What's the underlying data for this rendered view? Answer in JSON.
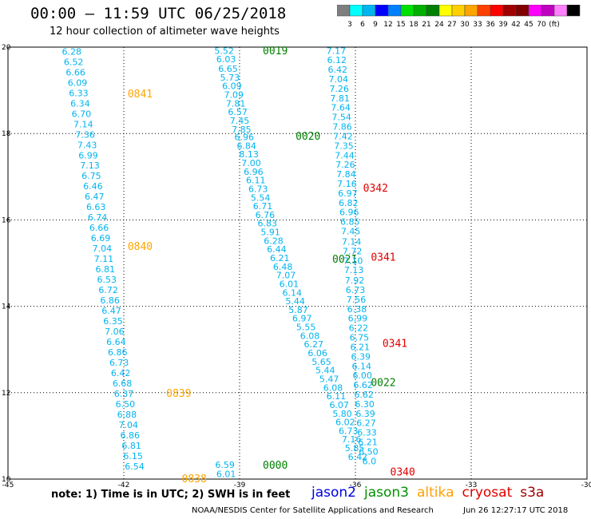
{
  "header": {
    "title": "00:00 – 11:59 UTC 06/25/2018",
    "subtitle": "12 hour collection of altimeter wave heights"
  },
  "colorbar": {
    "colors": [
      "#7f7f7f",
      "#00ffff",
      "#00b4f0",
      "#0000ff",
      "#0080ff",
      "#00e000",
      "#00b000",
      "#008000",
      "#ffff00",
      "#ffd000",
      "#ffa500",
      "#ff4000",
      "#ff0000",
      "#a00000",
      "#800000",
      "#ff00ff",
      "#c000c0",
      "#ff80ff",
      "#000000"
    ],
    "labels": [
      "3",
      "6",
      "9",
      "12",
      "15",
      "18",
      "21",
      "24",
      "27",
      "30",
      "33",
      "36",
      "39",
      "42",
      "45",
      "70",
      "(ft)"
    ]
  },
  "footer": {
    "note": "note: 1) Time is in UTC; 2) SWH is in feet",
    "legend": [
      {
        "name": "jason2",
        "color": "#0000e0"
      },
      {
        "name": "jason3",
        "color": "#009000"
      },
      {
        "name": "altika",
        "color": "#ffa000"
      },
      {
        "name": "cryosat",
        "color": "#e00000"
      },
      {
        "name": "s3a",
        "color": "#a00000"
      }
    ],
    "credit": "NOAA/NESDIS Center for Satellite Applications and Research",
    "timestamp": "Jun 26 12:27:17 UTC 2018"
  },
  "chart_data": {
    "type": "scatter",
    "xlim": [
      -45,
      -30
    ],
    "ylim": [
      10,
      20
    ],
    "x_ticks": [
      "-45",
      "-42",
      "-39",
      "-36",
      "-33",
      "-30"
    ],
    "y_ticks": [
      "10",
      "12",
      "14",
      "16",
      "18",
      "20"
    ],
    "grid": true,
    "tracks": [
      {
        "satellite": "altika",
        "value_color": "#00b4f0",
        "label_color": "#ffa500",
        "time_labels": [
          {
            "text": "0841",
            "x": -41.9,
            "y": 18.93
          },
          {
            "text": "0840",
            "x": -41.9,
            "y": 15.4
          },
          {
            "text": "0839",
            "x": -40.9,
            "y": 12.0
          },
          {
            "text": "0838",
            "x": -40.5,
            "y": 10.02
          }
        ],
        "points": [
          {
            "x": -43.35,
            "y": 19.9,
            "v": "6.28"
          },
          {
            "x": -43.3,
            "y": 19.66,
            "v": "6.52"
          },
          {
            "x": -43.25,
            "y": 19.42,
            "v": "6.66"
          },
          {
            "x": -43.2,
            "y": 19.18,
            "v": "6.09"
          },
          {
            "x": -43.17,
            "y": 18.94,
            "v": "6.33"
          },
          {
            "x": -43.13,
            "y": 18.7,
            "v": "6.34"
          },
          {
            "x": -43.1,
            "y": 18.46,
            "v": "6.70"
          },
          {
            "x": -43.05,
            "y": 18.22,
            "v": "7.14"
          },
          {
            "x": -43.0,
            "y": 17.98,
            "v": "7.36"
          },
          {
            "x": -42.95,
            "y": 17.74,
            "v": "7.43"
          },
          {
            "x": -42.92,
            "y": 17.5,
            "v": "6.99"
          },
          {
            "x": -42.88,
            "y": 17.26,
            "v": "7.13"
          },
          {
            "x": -42.84,
            "y": 17.02,
            "v": "6.75"
          },
          {
            "x": -42.8,
            "y": 16.78,
            "v": "6.46"
          },
          {
            "x": -42.76,
            "y": 16.54,
            "v": "6.47"
          },
          {
            "x": -42.72,
            "y": 16.3,
            "v": "6.63"
          },
          {
            "x": -42.68,
            "y": 16.06,
            "v": "6.74"
          },
          {
            "x": -42.64,
            "y": 15.82,
            "v": "6.66"
          },
          {
            "x": -42.6,
            "y": 15.58,
            "v": "6.69"
          },
          {
            "x": -42.56,
            "y": 15.34,
            "v": "7.04"
          },
          {
            "x": -42.52,
            "y": 15.1,
            "v": "7.11"
          },
          {
            "x": -42.48,
            "y": 14.86,
            "v": "6.81"
          },
          {
            "x": -42.44,
            "y": 14.62,
            "v": "6.53"
          },
          {
            "x": -42.4,
            "y": 14.38,
            "v": "6.72"
          },
          {
            "x": -42.36,
            "y": 14.14,
            "v": "6.86"
          },
          {
            "x": -42.32,
            "y": 13.9,
            "v": "6.47"
          },
          {
            "x": -42.28,
            "y": 13.66,
            "v": "6.35"
          },
          {
            "x": -42.24,
            "y": 13.42,
            "v": "7.06"
          },
          {
            "x": -42.2,
            "y": 13.18,
            "v": "6.64"
          },
          {
            "x": -42.16,
            "y": 12.94,
            "v": "6.86"
          },
          {
            "x": -42.12,
            "y": 12.7,
            "v": "6.73"
          },
          {
            "x": -42.08,
            "y": 12.46,
            "v": "6.42"
          },
          {
            "x": -42.04,
            "y": 12.22,
            "v": "6.68"
          },
          {
            "x": -42.0,
            "y": 11.98,
            "v": "6.37"
          },
          {
            "x": -41.96,
            "y": 11.74,
            "v": "6.50"
          },
          {
            "x": -41.92,
            "y": 11.5,
            "v": "6.88"
          },
          {
            "x": -41.88,
            "y": 11.26,
            "v": "7.04"
          },
          {
            "x": -41.84,
            "y": 11.02,
            "v": "6.86"
          },
          {
            "x": -41.8,
            "y": 10.78,
            "v": "6.81"
          },
          {
            "x": -41.76,
            "y": 10.54,
            "v": "6.15"
          },
          {
            "x": -41.72,
            "y": 10.3,
            "v": "6.54"
          }
        ]
      },
      {
        "satellite": "jason3",
        "value_color": "#00b4f0",
        "label_color": "#008000",
        "time_labels": [
          {
            "text": "0019",
            "x": -38.4,
            "y": 19.93
          },
          {
            "text": "0020",
            "x": -37.55,
            "y": 17.95
          },
          {
            "text": "0021",
            "x": -36.6,
            "y": 15.1
          },
          {
            "text": "0022",
            "x": -35.6,
            "y": 12.25
          },
          {
            "text": "0000",
            "x": -38.4,
            "y": 10.33
          }
        ],
        "points": [
          {
            "x": -39.4,
            "y": 19.92,
            "v": "5.52"
          },
          {
            "x": -39.35,
            "y": 19.72,
            "v": "6.03"
          },
          {
            "x": -39.3,
            "y": 19.5,
            "v": "6.65"
          },
          {
            "x": -39.25,
            "y": 19.3,
            "v": "5.73"
          },
          {
            "x": -39.2,
            "y": 19.1,
            "v": "6.09"
          },
          {
            "x": -39.15,
            "y": 18.9,
            "v": "7.09"
          },
          {
            "x": -39.1,
            "y": 18.7,
            "v": "7.81"
          },
          {
            "x": -39.05,
            "y": 18.5,
            "v": "6.57"
          },
          {
            "x": -39.0,
            "y": 18.3,
            "v": "7.45"
          },
          {
            "x": -38.95,
            "y": 18.1,
            "v": "7.85"
          },
          {
            "x": -38.88,
            "y": 17.92,
            "v": "6.96"
          },
          {
            "x": -38.82,
            "y": 17.72,
            "v": "6.84"
          },
          {
            "x": -38.76,
            "y": 17.52,
            "v": "8.13"
          },
          {
            "x": -38.7,
            "y": 17.32,
            "v": "7.00"
          },
          {
            "x": -38.64,
            "y": 17.12,
            "v": "6.96"
          },
          {
            "x": -38.58,
            "y": 16.92,
            "v": "6.11"
          },
          {
            "x": -38.52,
            "y": 16.72,
            "v": "6.73"
          },
          {
            "x": -38.46,
            "y": 16.52,
            "v": "5.54"
          },
          {
            "x": -38.4,
            "y": 16.32,
            "v": "6.71"
          },
          {
            "x": -38.34,
            "y": 16.12,
            "v": "6.76"
          },
          {
            "x": -38.28,
            "y": 15.92,
            "v": "6.83"
          },
          {
            "x": -38.2,
            "y": 15.72,
            "v": "5.91"
          },
          {
            "x": -38.12,
            "y": 15.52,
            "v": "6.28"
          },
          {
            "x": -38.04,
            "y": 15.32,
            "v": "6.44"
          },
          {
            "x": -37.96,
            "y": 15.12,
            "v": "6.21"
          },
          {
            "x": -37.88,
            "y": 14.92,
            "v": "6.48"
          },
          {
            "x": -37.8,
            "y": 14.72,
            "v": "7.07"
          },
          {
            "x": -37.72,
            "y": 14.52,
            "v": "6.01"
          },
          {
            "x": -37.64,
            "y": 14.32,
            "v": "6.14"
          },
          {
            "x": -37.56,
            "y": 14.12,
            "v": "5.44"
          },
          {
            "x": -37.48,
            "y": 13.92,
            "v": "5.87"
          },
          {
            "x": -37.38,
            "y": 13.72,
            "v": "6.97"
          },
          {
            "x": -37.28,
            "y": 13.52,
            "v": "5.55"
          },
          {
            "x": -37.18,
            "y": 13.32,
            "v": "6.08"
          },
          {
            "x": -37.08,
            "y": 13.12,
            "v": "6.27"
          },
          {
            "x": -36.98,
            "y": 12.92,
            "v": "6.06"
          },
          {
            "x": -36.88,
            "y": 12.72,
            "v": "5.65"
          },
          {
            "x": -36.78,
            "y": 12.52,
            "v": "5.44"
          },
          {
            "x": -36.68,
            "y": 12.32,
            "v": "5.47"
          },
          {
            "x": -36.58,
            "y": 12.12,
            "v": "6.08"
          },
          {
            "x": -36.5,
            "y": 11.92,
            "v": "6.11"
          },
          {
            "x": -36.42,
            "y": 11.72,
            "v": "6.07"
          },
          {
            "x": -36.34,
            "y": 11.52,
            "v": "5.80"
          },
          {
            "x": -36.26,
            "y": 11.32,
            "v": "6.02"
          },
          {
            "x": -36.18,
            "y": 11.12,
            "v": "6.73"
          },
          {
            "x": -36.1,
            "y": 10.92,
            "v": "7.16"
          },
          {
            "x": -36.02,
            "y": 10.72,
            "v": "5.85"
          },
          {
            "x": -35.94,
            "y": 10.52,
            "v": "6.42"
          },
          {
            "x": -39.38,
            "y": 10.33,
            "v": "6.59"
          },
          {
            "x": -39.35,
            "y": 10.12,
            "v": "6.01"
          }
        ]
      },
      {
        "satellite": "cryosat",
        "value_color": "#00b4f0",
        "label_color": "#e00000",
        "time_labels": [
          {
            "text": "0342",
            "x": -35.8,
            "y": 16.75
          },
          {
            "text": "0341",
            "x": -35.6,
            "y": 15.15
          },
          {
            "text": "0341",
            "x": -35.3,
            "y": 13.15
          },
          {
            "text": "0340",
            "x": -35.1,
            "y": 10.18
          }
        ],
        "points": [
          {
            "x": -36.5,
            "y": 19.92,
            "v": "7.17"
          },
          {
            "x": -36.48,
            "y": 19.7,
            "v": "6.12"
          },
          {
            "x": -36.46,
            "y": 19.48,
            "v": "6.42"
          },
          {
            "x": -36.44,
            "y": 19.26,
            "v": "7.04"
          },
          {
            "x": -36.42,
            "y": 19.04,
            "v": "7.26"
          },
          {
            "x": -36.4,
            "y": 18.82,
            "v": "7.81"
          },
          {
            "x": -36.38,
            "y": 18.6,
            "v": "7.64"
          },
          {
            "x": -36.36,
            "y": 18.38,
            "v": "7.54"
          },
          {
            "x": -36.34,
            "y": 18.16,
            "v": "7.86"
          },
          {
            "x": -36.32,
            "y": 17.94,
            "v": "7.42"
          },
          {
            "x": -36.3,
            "y": 17.72,
            "v": "7.35"
          },
          {
            "x": -36.28,
            "y": 17.5,
            "v": "7.44"
          },
          {
            "x": -36.26,
            "y": 17.28,
            "v": "7.26"
          },
          {
            "x": -36.24,
            "y": 17.06,
            "v": "7.84"
          },
          {
            "x": -36.22,
            "y": 16.84,
            "v": "7.16"
          },
          {
            "x": -36.2,
            "y": 16.62,
            "v": "6.97"
          },
          {
            "x": -36.18,
            "y": 16.4,
            "v": "6.82"
          },
          {
            "x": -36.16,
            "y": 16.18,
            "v": "6.96"
          },
          {
            "x": -36.14,
            "y": 15.96,
            "v": "6.85"
          },
          {
            "x": -36.12,
            "y": 15.74,
            "v": "7.45"
          },
          {
            "x": -36.1,
            "y": 15.5,
            "v": "7.14"
          },
          {
            "x": -36.08,
            "y": 15.28,
            "v": "7.72"
          },
          {
            "x": -36.06,
            "y": 15.06,
            "v": "7.10"
          },
          {
            "x": -36.04,
            "y": 14.84,
            "v": "7.13"
          },
          {
            "x": -36.02,
            "y": 14.6,
            "v": "7.92"
          },
          {
            "x": -36.0,
            "y": 14.38,
            "v": "6.73"
          },
          {
            "x": -35.98,
            "y": 14.16,
            "v": "7.56"
          },
          {
            "x": -35.96,
            "y": 13.94,
            "v": "6.38"
          },
          {
            "x": -35.94,
            "y": 13.72,
            "v": "6.99"
          },
          {
            "x": -35.92,
            "y": 13.5,
            "v": "6.22"
          },
          {
            "x": -35.9,
            "y": 13.28,
            "v": "6.75"
          },
          {
            "x": -35.88,
            "y": 13.06,
            "v": "6.21"
          },
          {
            "x": -35.86,
            "y": 12.84,
            "v": "6.39"
          },
          {
            "x": -35.84,
            "y": 12.62,
            "v": "6.14"
          },
          {
            "x": -35.82,
            "y": 12.4,
            "v": "6.00"
          },
          {
            "x": -35.8,
            "y": 12.18,
            "v": "6.62"
          },
          {
            "x": -35.78,
            "y": 11.96,
            "v": "6.62"
          },
          {
            "x": -35.76,
            "y": 11.74,
            "v": "6.30"
          },
          {
            "x": -35.74,
            "y": 11.52,
            "v": "6.39"
          },
          {
            "x": -35.72,
            "y": 11.3,
            "v": "6.27"
          },
          {
            "x": -35.7,
            "y": 11.08,
            "v": "6.33"
          },
          {
            "x": -35.68,
            "y": 10.86,
            "v": "6.21"
          },
          {
            "x": -35.66,
            "y": 10.64,
            "v": "6.50"
          },
          {
            "x": -35.64,
            "y": 10.42,
            "v": "6.0"
          }
        ]
      }
    ]
  }
}
